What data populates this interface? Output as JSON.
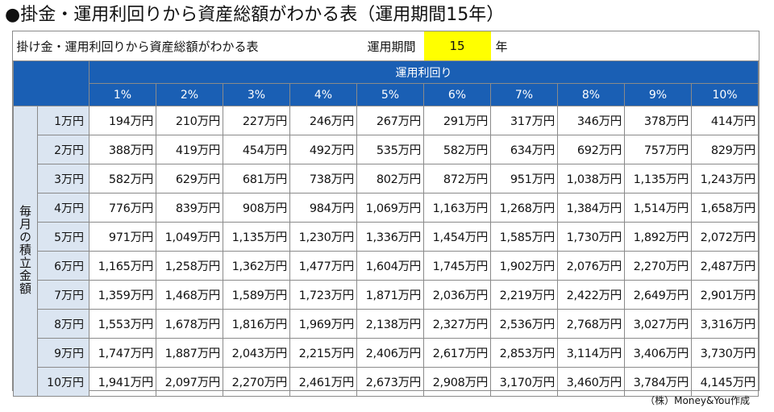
{
  "title": "●掛金・運用利回りから資産総額がわかる表（運用期間15年）",
  "table": {
    "caption": "掛け金・運用利回りから資産総額がわかる表",
    "period_label": "運用期間",
    "period_value": "15",
    "period_unit": "年",
    "rate_header": "運用利回り",
    "side_label": "毎月の積立金額",
    "columns": [
      "1%",
      "2%",
      "3%",
      "4%",
      "5%",
      "6%",
      "7%",
      "8%",
      "9%",
      "10%"
    ],
    "rows": [
      {
        "label": "1万円",
        "values": [
          "194万円",
          "210万円",
          "227万円",
          "246万円",
          "267万円",
          "291万円",
          "317万円",
          "346万円",
          "378万円",
          "414万円"
        ]
      },
      {
        "label": "2万円",
        "values": [
          "388万円",
          "419万円",
          "454万円",
          "492万円",
          "535万円",
          "582万円",
          "634万円",
          "692万円",
          "757万円",
          "829万円"
        ]
      },
      {
        "label": "3万円",
        "values": [
          "582万円",
          "629万円",
          "681万円",
          "738万円",
          "802万円",
          "872万円",
          "951万円",
          "1,038万円",
          "1,135万円",
          "1,243万円"
        ]
      },
      {
        "label": "4万円",
        "values": [
          "776万円",
          "839万円",
          "908万円",
          "984万円",
          "1,069万円",
          "1,163万円",
          "1,268万円",
          "1,384万円",
          "1,514万円",
          "1,658万円"
        ]
      },
      {
        "label": "5万円",
        "values": [
          "971万円",
          "1,049万円",
          "1,135万円",
          "1,230万円",
          "1,336万円",
          "1,454万円",
          "1,585万円",
          "1,730万円",
          "1,892万円",
          "2,072万円"
        ]
      },
      {
        "label": "6万円",
        "values": [
          "1,165万円",
          "1,258万円",
          "1,362万円",
          "1,477万円",
          "1,604万円",
          "1,745万円",
          "1,902万円",
          "2,076万円",
          "2,270万円",
          "2,487万円"
        ]
      },
      {
        "label": "7万円",
        "values": [
          "1,359万円",
          "1,468万円",
          "1,589万円",
          "1,723万円",
          "1,871万円",
          "2,036万円",
          "2,219万円",
          "2,422万円",
          "2,649万円",
          "2,901万円"
        ]
      },
      {
        "label": "8万円",
        "values": [
          "1,553万円",
          "1,678万円",
          "1,816万円",
          "1,969万円",
          "2,138万円",
          "2,327万円",
          "2,536万円",
          "2,768万円",
          "3,027万円",
          "3,316万円"
        ]
      },
      {
        "label": "9万円",
        "values": [
          "1,747万円",
          "1,887万円",
          "2,043万円",
          "2,215万円",
          "2,406万円",
          "2,617万円",
          "2,853万円",
          "3,114万円",
          "3,406万円",
          "3,730万円"
        ]
      },
      {
        "label": "10万円",
        "values": [
          "1,941万円",
          "2,097万円",
          "2,270万円",
          "2,461万円",
          "2,673万円",
          "2,908万円",
          "3,170万円",
          "3,460万円",
          "3,784万円",
          "4,145万円"
        ]
      }
    ]
  },
  "credit": "（株）Money&You作成",
  "colors": {
    "header_blue": "#1a5fb4",
    "side_light_blue": "#dbe5f1",
    "period_highlight": "#ffff00"
  }
}
